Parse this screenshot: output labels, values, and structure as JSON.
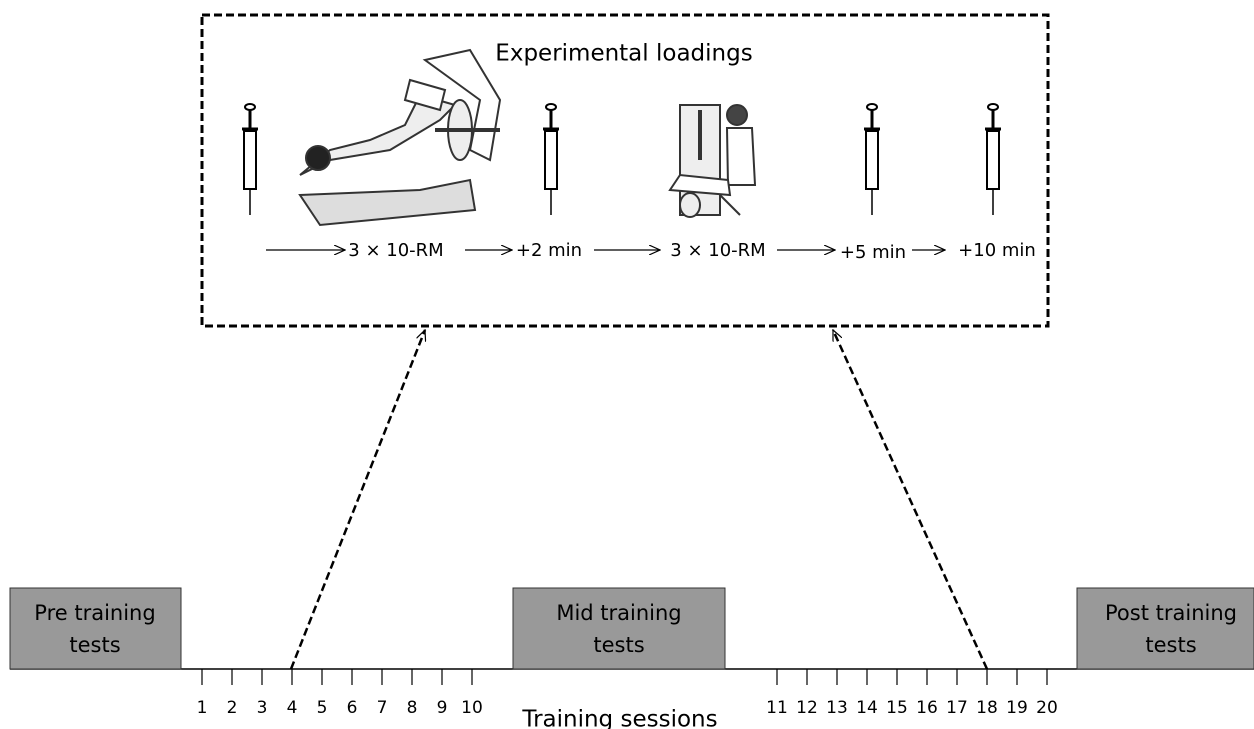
{
  "loadings": {
    "title": "Experimental loadings",
    "steps": [
      "3 × 10-RM",
      "+2 min",
      "3 × 10-RM",
      "+5 min",
      "+10 min"
    ]
  },
  "phases": [
    {
      "lines": [
        "Pre training",
        "tests"
      ]
    },
    {
      "lines": [
        "Mid training",
        "tests"
      ]
    },
    {
      "lines": [
        "Post training",
        "tests"
      ]
    }
  ],
  "sessions": {
    "label": "Training sessions",
    "numbers": [
      "1",
      "2",
      "3",
      "4",
      "5",
      "6",
      "7",
      "8",
      "9",
      "10",
      "11",
      "12",
      "13",
      "14",
      "15",
      "16",
      "17",
      "18",
      "19",
      "20"
    ]
  }
}
